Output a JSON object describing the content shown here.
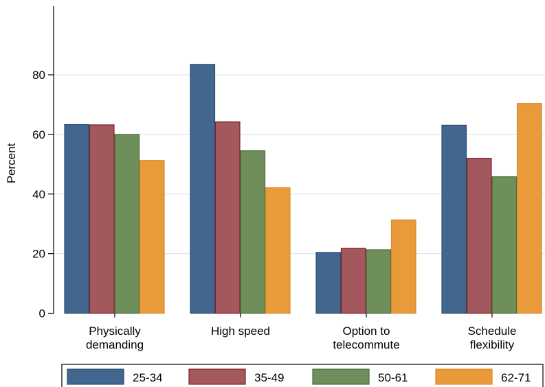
{
  "chart_data": {
    "type": "bar",
    "categories": [
      [
        "Physically",
        "demanding"
      ],
      [
        "High speed"
      ],
      [
        "Option to",
        "telecommute"
      ],
      [
        "Schedule",
        "flexibility"
      ]
    ],
    "series": [
      {
        "name": "25-34",
        "color": "#41678f",
        "stroke": "#2a4a6e",
        "values": [
          63.3,
          83.5,
          20.4,
          63.1
        ]
      },
      {
        "name": "35-49",
        "color": "#a3585d",
        "stroke": "#7d1f2a",
        "values": [
          63.2,
          64.2,
          21.8,
          52.0
        ]
      },
      {
        "name": "50-61",
        "color": "#6e8f5a",
        "stroke": "#4a6b3a",
        "values": [
          60.0,
          54.5,
          21.3,
          45.8
        ]
      },
      {
        "name": "62-71",
        "color": "#e99a3a",
        "stroke": "#d98a2a",
        "values": [
          51.3,
          42.1,
          31.3,
          70.4
        ]
      }
    ],
    "title": "",
    "xlabel": "",
    "ylabel": "Percent",
    "ylim": [
      0,
      100
    ],
    "yticks": [
      0,
      20,
      40,
      60,
      80
    ],
    "grid": true,
    "legend_position": "bottom"
  }
}
